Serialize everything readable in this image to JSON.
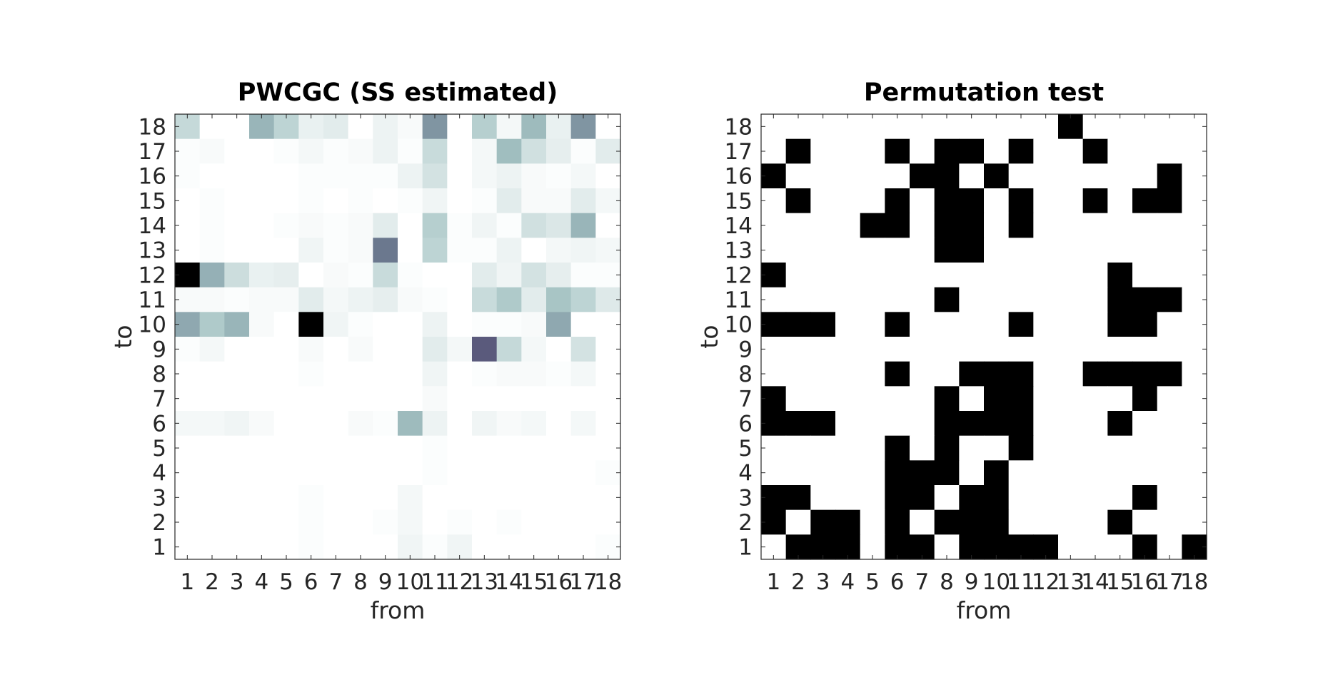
{
  "chart_data": [
    {
      "type": "heatmap",
      "title": "PWCGC (SS estimated)",
      "xlabel": "from",
      "ylabel": "to",
      "x_ticks": [
        "1",
        "2",
        "3",
        "4",
        "5",
        "6",
        "7",
        "8",
        "9",
        "10",
        "11",
        "12",
        "13",
        "14",
        "15",
        "16",
        "17",
        "18"
      ],
      "y_ticks": [
        "1",
        "2",
        "3",
        "4",
        "5",
        "6",
        "7",
        "8",
        "9",
        "10",
        "11",
        "12",
        "13",
        "14",
        "15",
        "16",
        "17",
        "18"
      ],
      "value_range": [
        0,
        1
      ],
      "colormap": [
        "#ffffff",
        "#a4c3c3",
        "#6f7f93",
        "#5a5a7c",
        "#000000"
      ],
      "rows_top_to_bottom_to": [
        18,
        17,
        16,
        15,
        14,
        13,
        12,
        11,
        10,
        9,
        8,
        7,
        6,
        5,
        4,
        3,
        2,
        1
      ],
      "values": [
        [
          0.16,
          0,
          0,
          0.3,
          0.18,
          0.06,
          0.08,
          0,
          0.05,
          0.02,
          0.42,
          0,
          0.2,
          0.03,
          0.28,
          0.06,
          0.42,
          0
        ],
        [
          0.01,
          0.02,
          0,
          0,
          0.01,
          0.03,
          0.01,
          0.02,
          0.05,
          0.01,
          0.15,
          0,
          0.03,
          0.27,
          0.13,
          0.07,
          0.01,
          0.08
        ],
        [
          0.01,
          0,
          0,
          0,
          0,
          0.01,
          0.01,
          0.01,
          0.01,
          0.05,
          0.12,
          0,
          0.03,
          0.05,
          0.02,
          0.01,
          0.03,
          0
        ],
        [
          0,
          0.01,
          0,
          0,
          0,
          0.01,
          0,
          0.01,
          0,
          0.01,
          0.04,
          0,
          0.01,
          0.08,
          0.02,
          0.02,
          0.08,
          0.03
        ],
        [
          0,
          0.01,
          0,
          0,
          0.01,
          0.02,
          0.01,
          0.02,
          0.08,
          0,
          0.2,
          0.01,
          0.04,
          0.01,
          0.13,
          0.1,
          0.3,
          0
        ],
        [
          0,
          0.01,
          0,
          0,
          0,
          0.04,
          0.01,
          0.02,
          0.55,
          0,
          0.18,
          0.01,
          0.01,
          0.05,
          0,
          0.03,
          0.04,
          0.03
        ],
        [
          1.0,
          0.32,
          0.14,
          0.06,
          0.07,
          0,
          0.02,
          0.01,
          0.15,
          0.01,
          0,
          0,
          0.08,
          0.04,
          0.12,
          0.07,
          0.01,
          0.01
        ],
        [
          0.02,
          0.02,
          0.01,
          0.02,
          0.02,
          0.08,
          0.03,
          0.05,
          0.07,
          0.02,
          0.01,
          0,
          0.15,
          0.22,
          0.08,
          0.24,
          0.18,
          0.09
        ],
        [
          0.35,
          0.22,
          0.3,
          0.02,
          0,
          1.0,
          0.04,
          0.01,
          0,
          0,
          0.05,
          0,
          0.01,
          0.01,
          0.02,
          0.35,
          0,
          0
        ],
        [
          0.01,
          0.03,
          0,
          0,
          0,
          0.02,
          0,
          0.02,
          0,
          0,
          0.08,
          0.03,
          0.75,
          0.16,
          0.03,
          0,
          0.12,
          0
        ],
        [
          0,
          0,
          0,
          0,
          0,
          0.01,
          0,
          0,
          0,
          0,
          0.04,
          0,
          0.01,
          0.02,
          0.02,
          0.01,
          0.03,
          0
        ],
        [
          0,
          0,
          0,
          0,
          0,
          0,
          0,
          0,
          0,
          0,
          0.02,
          0,
          0,
          0,
          0,
          0,
          0,
          0
        ],
        [
          0.03,
          0.03,
          0.04,
          0.02,
          0,
          0,
          0,
          0.02,
          0.01,
          0.28,
          0.05,
          0,
          0.04,
          0.02,
          0.03,
          0,
          0.03,
          0
        ],
        [
          0,
          0,
          0,
          0,
          0,
          0,
          0,
          0,
          0,
          0,
          0.01,
          0,
          0,
          0,
          0,
          0,
          0,
          0
        ],
        [
          0,
          0,
          0,
          0,
          0,
          0,
          0,
          0,
          0,
          0,
          0.01,
          0,
          0,
          0,
          0,
          0,
          0,
          0.01
        ],
        [
          0,
          0,
          0,
          0,
          0,
          0.01,
          0,
          0,
          0,
          0.03,
          0,
          0,
          0,
          0,
          0,
          0,
          0,
          0
        ],
        [
          0,
          0,
          0,
          0,
          0,
          0.01,
          0,
          0,
          0.01,
          0.03,
          0,
          0.01,
          0,
          0.01,
          0,
          0,
          0,
          0
        ],
        [
          0,
          0,
          0,
          0,
          0,
          0.01,
          0,
          0,
          0,
          0.04,
          0.01,
          0.04,
          0,
          0,
          0,
          0,
          0,
          0.01
        ]
      ]
    },
    {
      "type": "heatmap",
      "title": "Permutation test",
      "xlabel": "from",
      "ylabel": "to",
      "x_ticks": [
        "1",
        "2",
        "3",
        "4",
        "5",
        "6",
        "7",
        "8",
        "9",
        "10",
        "11",
        "12",
        "13",
        "14",
        "15",
        "16",
        "17",
        "18"
      ],
      "y_ticks": [
        "1",
        "2",
        "3",
        "4",
        "5",
        "6",
        "7",
        "8",
        "9",
        "10",
        "11",
        "12",
        "13",
        "14",
        "15",
        "16",
        "17",
        "18"
      ],
      "value_range": [
        0,
        1
      ],
      "colormap": [
        "#ffffff",
        "#000000"
      ],
      "rows_top_to_bottom_to": [
        18,
        17,
        16,
        15,
        14,
        13,
        12,
        11,
        10,
        9,
        8,
        7,
        6,
        5,
        4,
        3,
        2,
        1
      ],
      "values": [
        [
          0,
          0,
          0,
          0,
          0,
          0,
          0,
          0,
          0,
          0,
          0,
          0,
          1,
          0,
          0,
          0,
          0,
          0
        ],
        [
          0,
          1,
          0,
          0,
          0,
          1,
          0,
          1,
          1,
          0,
          1,
          0,
          0,
          1,
          0,
          0,
          0,
          0
        ],
        [
          1,
          0,
          0,
          0,
          0,
          0,
          1,
          1,
          0,
          1,
          0,
          0,
          0,
          0,
          0,
          0,
          1,
          0
        ],
        [
          0,
          1,
          0,
          0,
          0,
          1,
          0,
          1,
          1,
          0,
          1,
          0,
          0,
          1,
          0,
          1,
          1,
          0
        ],
        [
          0,
          0,
          0,
          0,
          1,
          1,
          0,
          1,
          1,
          0,
          1,
          0,
          0,
          0,
          0,
          0,
          0,
          0
        ],
        [
          0,
          0,
          0,
          0,
          0,
          0,
          0,
          1,
          1,
          0,
          0,
          0,
          0,
          0,
          0,
          0,
          0,
          0
        ],
        [
          1,
          0,
          0,
          0,
          0,
          0,
          0,
          0,
          0,
          0,
          0,
          0,
          0,
          0,
          1,
          0,
          0,
          0
        ],
        [
          0,
          0,
          0,
          0,
          0,
          0,
          0,
          1,
          0,
          0,
          0,
          0,
          0,
          0,
          1,
          1,
          1,
          0
        ],
        [
          1,
          1,
          1,
          0,
          0,
          1,
          0,
          0,
          0,
          0,
          1,
          0,
          0,
          0,
          1,
          1,
          0,
          0
        ],
        [
          0,
          0,
          0,
          0,
          0,
          0,
          0,
          0,
          0,
          0,
          0,
          0,
          0,
          0,
          0,
          0,
          0,
          0
        ],
        [
          0,
          0,
          0,
          0,
          0,
          1,
          0,
          0,
          1,
          1,
          1,
          0,
          0,
          1,
          1,
          1,
          1,
          0
        ],
        [
          1,
          0,
          0,
          0,
          0,
          0,
          0,
          1,
          0,
          1,
          1,
          0,
          0,
          0,
          0,
          1,
          0,
          0
        ],
        [
          1,
          1,
          1,
          0,
          0,
          0,
          0,
          1,
          1,
          1,
          1,
          0,
          0,
          0,
          1,
          0,
          0,
          0
        ],
        [
          0,
          0,
          0,
          0,
          0,
          1,
          0,
          1,
          0,
          0,
          1,
          0,
          0,
          0,
          0,
          0,
          0,
          0
        ],
        [
          0,
          0,
          0,
          0,
          0,
          1,
          1,
          1,
          0,
          1,
          0,
          0,
          0,
          0,
          0,
          0,
          0,
          0
        ],
        [
          1,
          1,
          0,
          0,
          0,
          1,
          1,
          0,
          1,
          1,
          0,
          0,
          0,
          0,
          0,
          1,
          0,
          0
        ],
        [
          1,
          0,
          1,
          1,
          0,
          1,
          0,
          1,
          1,
          1,
          0,
          0,
          0,
          0,
          1,
          0,
          0,
          0
        ],
        [
          0,
          1,
          1,
          1,
          0,
          1,
          1,
          0,
          1,
          1,
          1,
          1,
          0,
          0,
          0,
          1,
          0,
          1
        ]
      ]
    }
  ]
}
